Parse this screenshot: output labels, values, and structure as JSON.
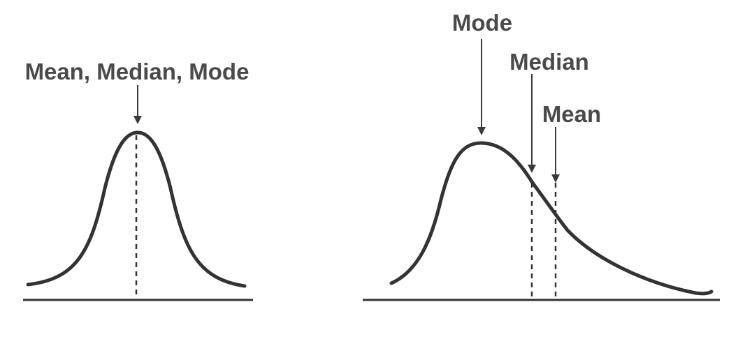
{
  "symmetric": {
    "label": "Mean, Median, Mode"
  },
  "skewed": {
    "mode_label": "Mode",
    "median_label": "Median",
    "mean_label": "Mean"
  }
}
